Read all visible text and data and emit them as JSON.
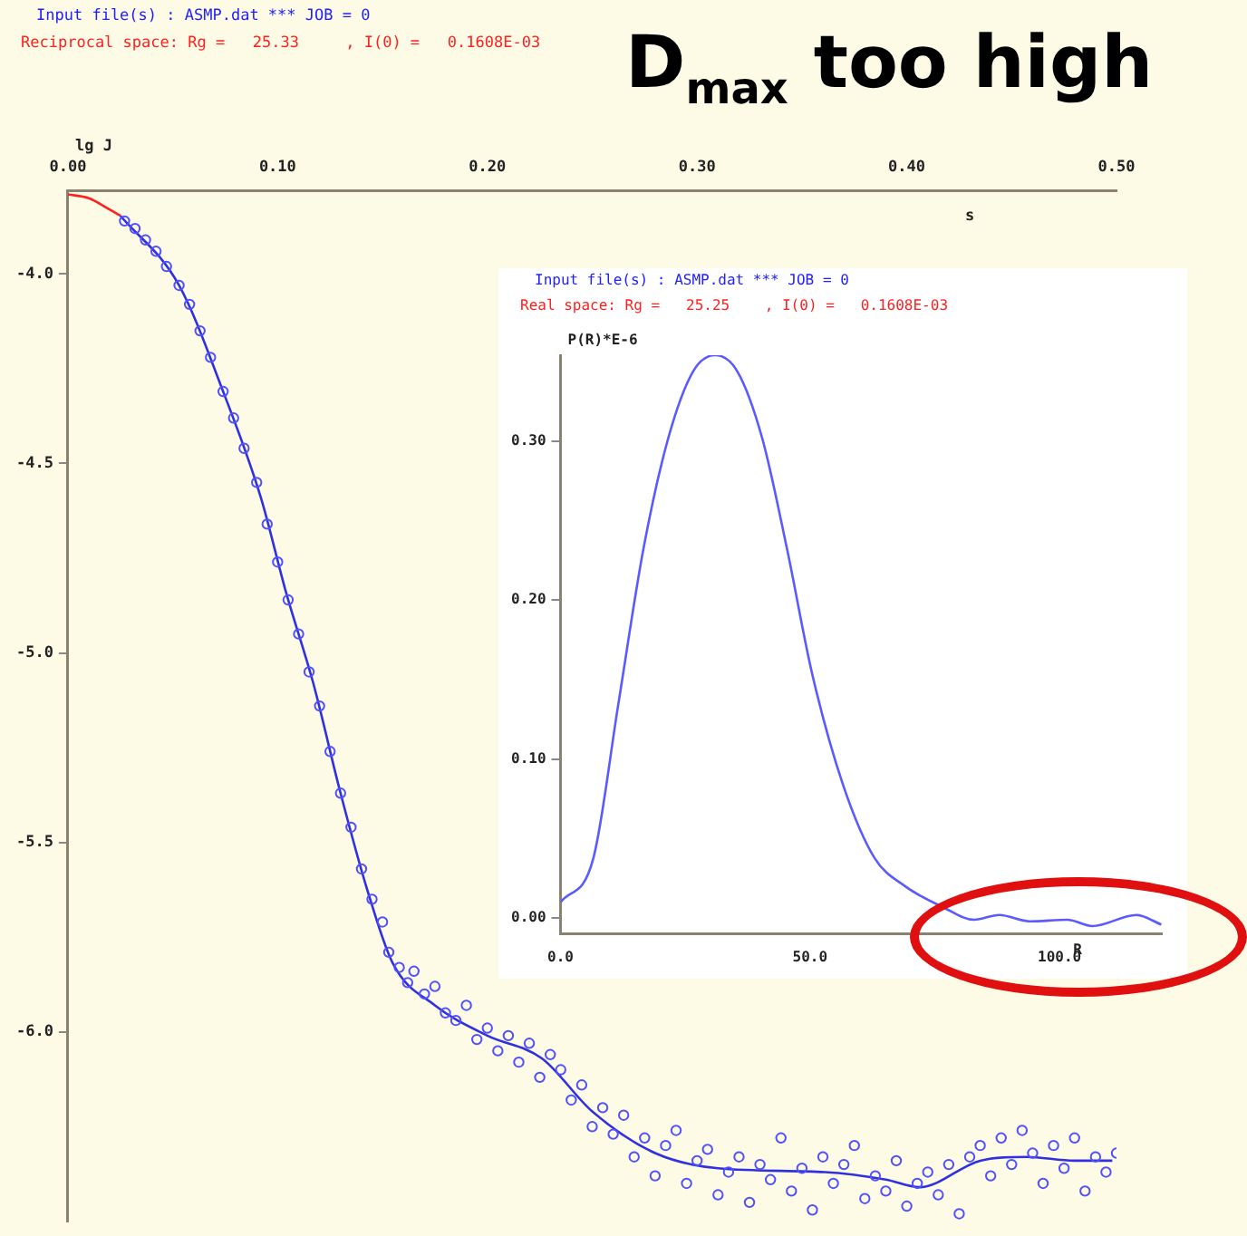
{
  "chart_data": [
    {
      "type": "scatter",
      "title": "Input file(s) : ASMP.dat *** JOB = 0",
      "subtitle": "Reciprocal space: Rg =   25.33     , I(0) =   0.1608E-03",
      "annotations": [
        "D$_{max}$ too high"
      ],
      "xlabel": "s",
      "ylabel": "lg J",
      "xlim": [
        0,
        0.5
      ],
      "ylim": [
        -6.5,
        -3.78
      ],
      "xticks": [
        {
          "value": 0,
          "label": "0.00"
        },
        {
          "value": 0.1,
          "label": "0.10"
        },
        {
          "value": 0.2,
          "label": "0.20"
        },
        {
          "value": 0.3,
          "label": "0.30"
        },
        {
          "value": 0.4,
          "label": "0.40"
        },
        {
          "value": 0.5,
          "label": "0.50"
        }
      ],
      "yticks": [
        {
          "value": -4,
          "label": "-4.0"
        },
        {
          "value": -4.5,
          "label": "-4.5"
        },
        {
          "value": -5,
          "label": "-5.0"
        },
        {
          "value": -5.5,
          "label": "-5.5"
        },
        {
          "value": -6,
          "label": "-6.0"
        }
      ],
      "grid": false,
      "legend": false,
      "series": [
        {
          "type": "scatter",
          "marker": "circle",
          "color": "#5050ff",
          "x": [
            0.027,
            0.032,
            0.037,
            0.042,
            0.047,
            0.053,
            0.058,
            0.063,
            0.068,
            0.074,
            0.079,
            0.084,
            0.09,
            0.095,
            0.1,
            0.105,
            0.11,
            0.115,
            0.12,
            0.125,
            0.13,
            0.135,
            0.14,
            0.145,
            0.15,
            0.153,
            0.158,
            0.162,
            0.165,
            0.17,
            0.175,
            0.18,
            0.185,
            0.19,
            0.195,
            0.2,
            0.205,
            0.21,
            0.215,
            0.22,
            0.225,
            0.23,
            0.235,
            0.24,
            0.245,
            0.25,
            0.255,
            0.26,
            0.265,
            0.27,
            0.275,
            0.28,
            0.285,
            0.29,
            0.295,
            0.3,
            0.305,
            0.31,
            0.315,
            0.32,
            0.325,
            0.33,
            0.335,
            0.34,
            0.345,
            0.35,
            0.355,
            0.36,
            0.365,
            0.37,
            0.375,
            0.38,
            0.385,
            0.39,
            0.395,
            0.4,
            0.405,
            0.41,
            0.415,
            0.42,
            0.425,
            0.43,
            0.435,
            0.44,
            0.445,
            0.45,
            0.455,
            0.46,
            0.465,
            0.47,
            0.475,
            0.48,
            0.485,
            0.49,
            0.495,
            0.5
          ],
          "values": [
            -3.86,
            -3.88,
            -3.91,
            -3.94,
            -3.98,
            -4.03,
            -4.08,
            -4.15,
            -4.22,
            -4.31,
            -4.38,
            -4.46,
            -4.55,
            -4.66,
            -4.76,
            -4.86,
            -4.95,
            -5.05,
            -5.14,
            -5.26,
            -5.37,
            -5.46,
            -5.57,
            -5.65,
            -5.71,
            -5.79,
            -5.83,
            -5.87,
            -5.84,
            -5.9,
            -5.88,
            -5.95,
            -5.97,
            -5.93,
            -6.02,
            -5.99,
            -6.05,
            -6.01,
            -6.08,
            -6.03,
            -6.12,
            -6.06,
            -6.1,
            -6.18,
            -6.14,
            -6.25,
            -6.2,
            -6.27,
            -6.22,
            -6.33,
            -6.28,
            -6.38,
            -6.3,
            -6.26,
            -6.4,
            -6.34,
            -6.31,
            -6.43,
            -6.37,
            -6.33,
            -6.45,
            -6.35,
            -6.39,
            -6.28,
            -6.42,
            -6.36,
            -6.47,
            -6.33,
            -6.4,
            -6.35,
            -6.3,
            -6.44,
            -6.38,
            -6.42,
            -6.34,
            -6.46,
            -6.4,
            -6.37,
            -6.43,
            -6.35,
            -6.48,
            -6.33,
            -6.3,
            -6.38,
            -6.28,
            -6.35,
            -6.26,
            -6.32,
            -6.4,
            -6.3,
            -6.36,
            -6.28,
            -6.42,
            -6.33,
            -6.37,
            -6.32
          ]
        },
        {
          "type": "line",
          "color": "#3030e0",
          "x": [
            0.025,
            0.053,
            0.074,
            0.092,
            0.104,
            0.117,
            0.13,
            0.143,
            0.155,
            0.175,
            0.2,
            0.226,
            0.25,
            0.28,
            0.31,
            0.361,
            0.39,
            0.406,
            0.435,
            0.457,
            0.48,
            0.498
          ],
          "values": [
            -3.846,
            -4.03,
            -4.31,
            -4.59,
            -4.84,
            -5.08,
            -5.37,
            -5.63,
            -5.82,
            -5.93,
            -6.01,
            -6.07,
            -6.21,
            -6.32,
            -6.36,
            -6.37,
            -6.39,
            -6.41,
            -6.34,
            -6.33,
            -6.34,
            -6.34
          ]
        },
        {
          "type": "line",
          "color": "#ff2020",
          "x": [
            0,
            0.01,
            0.02,
            0.025
          ],
          "values": [
            -3.79,
            -3.8,
            -3.83,
            -3.846
          ]
        }
      ]
    },
    {
      "type": "line",
      "title": "Input file(s) : ASMP.dat *** JOB = 0",
      "subtitle": "Real space: Rg =   25.25    , I(0) =   0.1608E-03",
      "xlabel": "R",
      "ylabel": "P(R)*E-6",
      "xlim": [
        0,
        120.5
      ],
      "ylim": [
        -0.01,
        0.354
      ],
      "xticks": [
        {
          "value": 0,
          "label": "0.0"
        },
        {
          "value": 50,
          "label": "50.0"
        },
        {
          "value": 100,
          "label": "100.0"
        }
      ],
      "yticks": [
        {
          "value": 0,
          "label": "0.00"
        },
        {
          "value": 0.1,
          "label": "0.10"
        },
        {
          "value": 0.2,
          "label": "0.20"
        },
        {
          "value": 0.3,
          "label": "0.30"
        }
      ],
      "grid": false,
      "legend": false,
      "series": [
        {
          "color": "#5a5aff",
          "x": [
            0,
            6.6,
            11.6,
            16.6,
            21.6,
            26.6,
            31.0,
            35.4,
            40.4,
            45.4,
            50.4,
            56.6,
            62.9,
            69.1,
            76.6,
            82.9,
            87.9,
            94.1,
            101.6,
            106.6,
            115.4,
            120.4
          ],
          "values": [
            0.01,
            0.038,
            0.135,
            0.232,
            0.302,
            0.344,
            0.354,
            0.344,
            0.302,
            0.232,
            0.154,
            0.084,
            0.038,
            0.02,
            0.007,
            -0.001,
            0.002,
            -0.002,
            -0.001,
            -0.005,
            0.002,
            -0.004
          ]
        }
      ]
    }
  ]
}
